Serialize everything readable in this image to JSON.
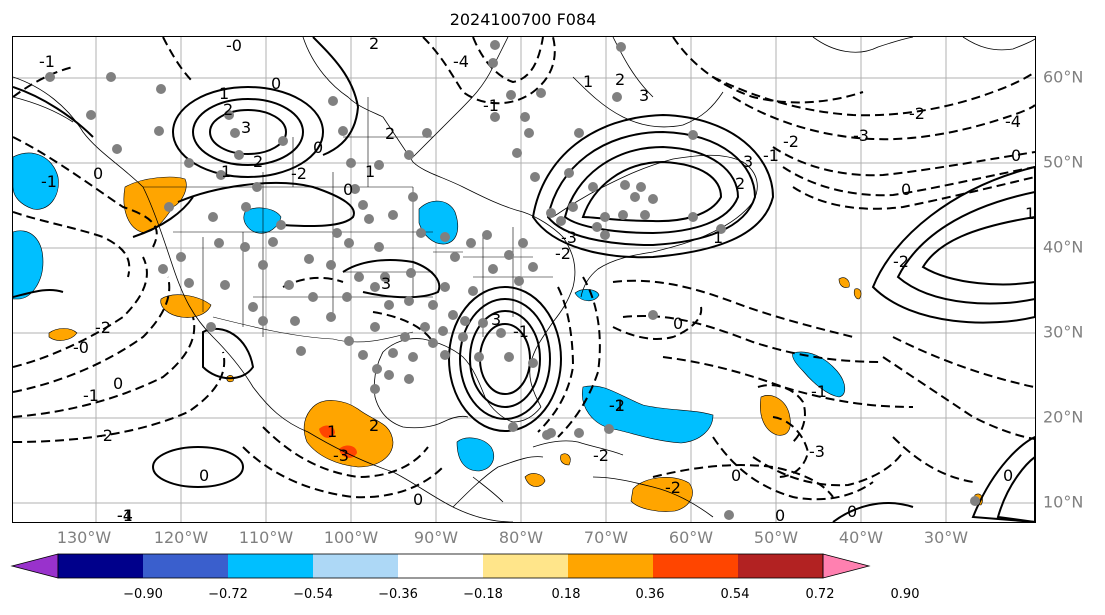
{
  "title": "2024100700 F084",
  "longitude_labels": [
    "130°W",
    "120°W",
    "110°W",
    "100°W",
    "90°W",
    "80°W",
    "70°W",
    "60°W",
    "50°W",
    "40°W",
    "30°W"
  ],
  "latitude_labels": [
    "60°N",
    "50°N",
    "40°N",
    "30°N",
    "20°N",
    "10°N"
  ],
  "contour_labels": [
    "-0",
    "2",
    "-1",
    "0",
    "1",
    "2",
    "3",
    "2",
    "1",
    "0",
    "-1",
    "-2",
    "0",
    "1",
    "2",
    "3",
    "-1",
    "-2",
    "-3",
    "-4",
    "0",
    "-2",
    "-1",
    "2",
    "1",
    "0",
    "-1",
    "-2",
    "-3",
    "-2",
    "-1",
    "0",
    "1",
    "2",
    "3",
    "-2",
    "-3",
    "-4",
    "0",
    "1",
    "-2",
    "-3",
    "0",
    "0",
    "0",
    "0",
    "0",
    "-1",
    "-2",
    "-1",
    "-2",
    "0",
    "3",
    "-4",
    "-1",
    "-0",
    "0",
    "1",
    "2",
    "3",
    "-2"
  ],
  "colorbar": {
    "ticks": [
      "−0.90",
      "−0.72",
      "−0.54",
      "−0.36",
      "−0.18",
      "0.18",
      "0.36",
      "0.54",
      "0.72",
      "0.90"
    ],
    "colors": [
      "#9932cc",
      "#00008b",
      "#3a5fcd",
      "#00bfff",
      "#add8f6",
      "#ffffff",
      "#ffe58a",
      "#ffa500",
      "#ff4500",
      "#b22222",
      "#ff80b0"
    ]
  },
  "fill_colors": {
    "blue": "#00bfff",
    "orange": "#ffa500",
    "red": "#ff4500"
  }
}
